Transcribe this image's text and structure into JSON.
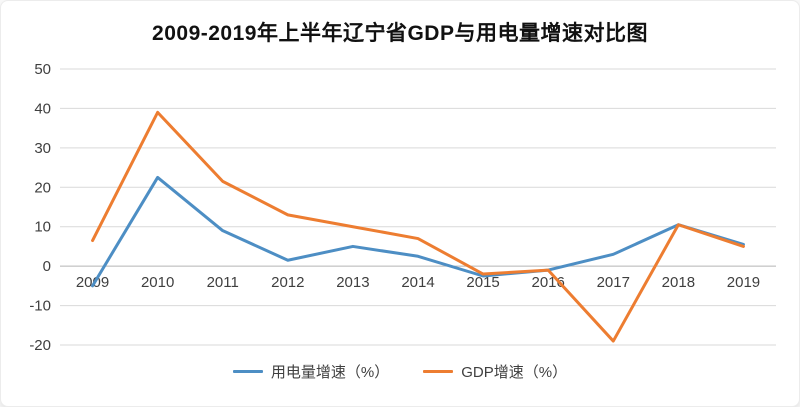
{
  "chart_data": {
    "type": "line",
    "title": "2009-2019年上半年辽宁省GDP与用电量增速对比图",
    "categories": [
      "2009",
      "2010",
      "2011",
      "2012",
      "2013",
      "2014",
      "2015",
      "2016",
      "2017",
      "2018",
      "2019"
    ],
    "series": [
      {
        "name": "用电量增速（%）",
        "color": "#4d8ec4",
        "values": [
          -5,
          22.5,
          9,
          1.5,
          5,
          2.5,
          -2.5,
          -1,
          3,
          10.5,
          5.5
        ]
      },
      {
        "name": "GDP增速（%）",
        "color": "#ed7d31",
        "values": [
          6.5,
          39,
          21.5,
          13,
          10,
          7,
          -2,
          -1,
          -19,
          10.5,
          5
        ]
      }
    ],
    "ylim": [
      -20,
      50
    ],
    "yticks": [
      50,
      40,
      30,
      20,
      10,
      0,
      -10,
      -20
    ],
    "xlabel": "",
    "ylabel": "",
    "grid": true,
    "legend_position": "bottom"
  }
}
